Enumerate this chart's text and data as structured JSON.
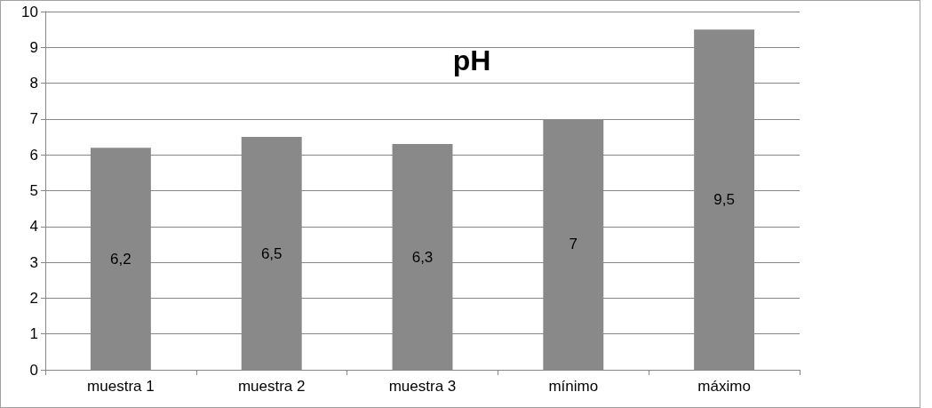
{
  "chart_data": {
    "type": "bar",
    "title": "pH",
    "categories": [
      "muestra 1",
      "muestra 2",
      "muestra 3",
      "mínimo",
      "máximo"
    ],
    "values": [
      6.2,
      6.5,
      6.3,
      7,
      9.5
    ],
    "value_labels": [
      "6,2",
      "6,5",
      "6,3",
      "7",
      "9,5"
    ],
    "color": "#898989",
    "ylim": [
      0,
      10
    ],
    "yticks": [
      0,
      1,
      2,
      3,
      4,
      5,
      6,
      7,
      8,
      9,
      10
    ],
    "grid": "y"
  }
}
